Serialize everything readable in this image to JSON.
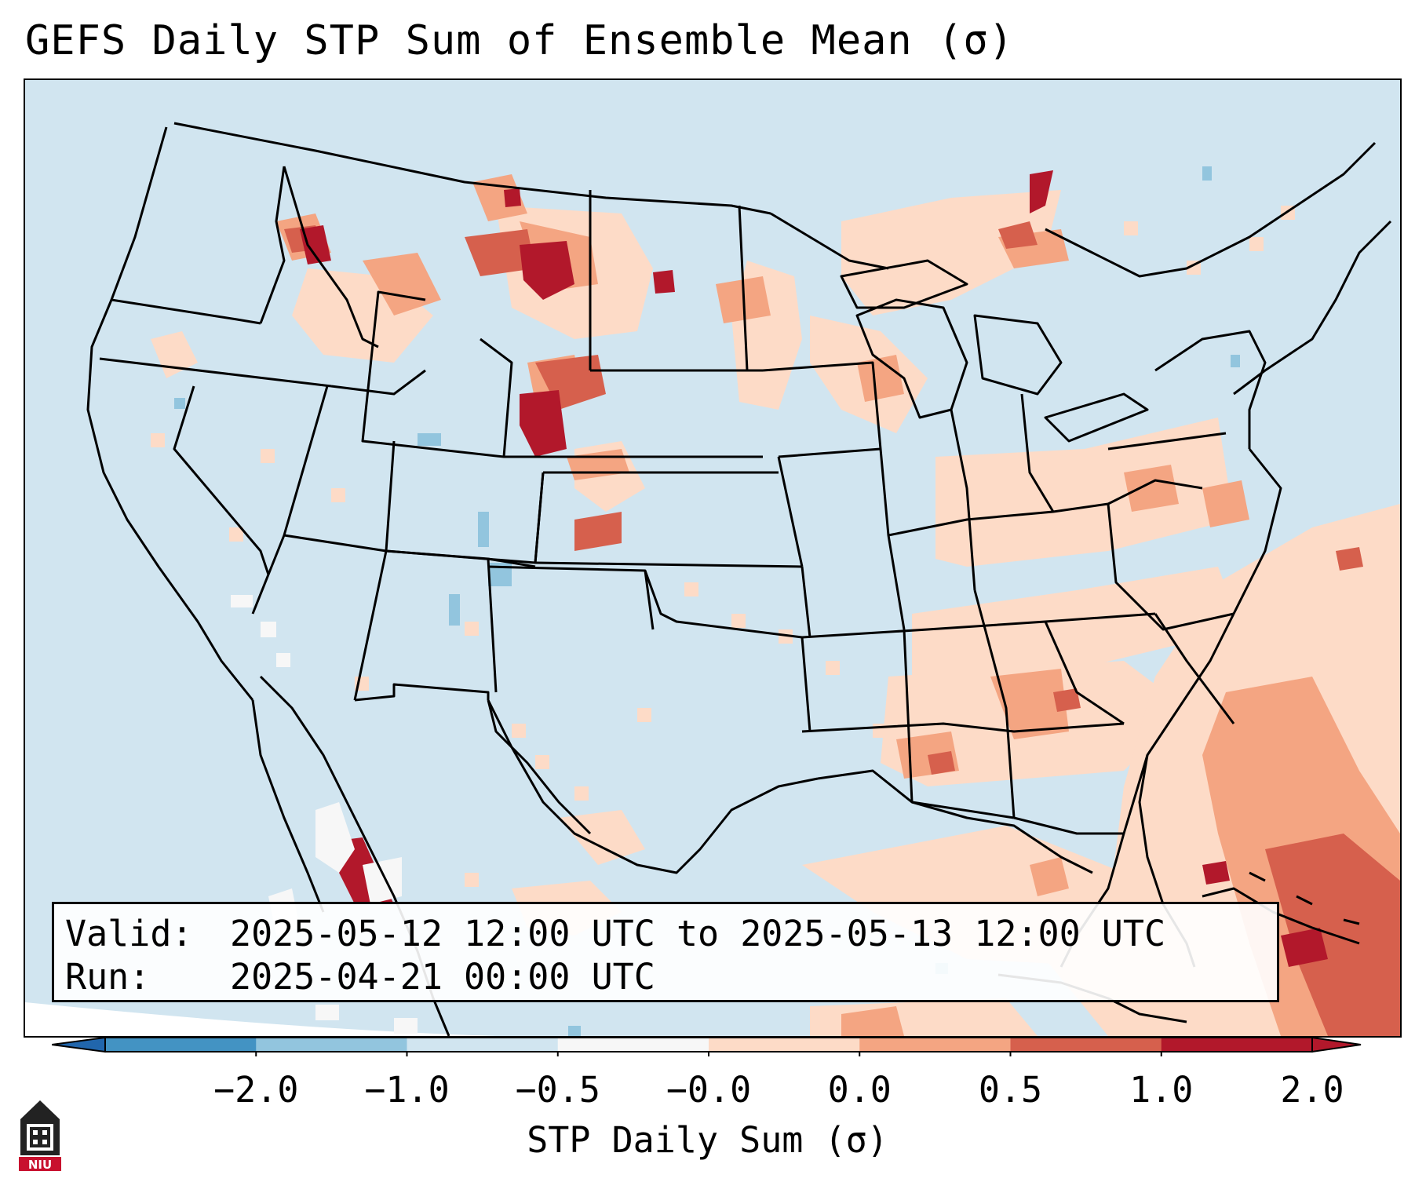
{
  "title": "GEFS Daily STP Sum of Ensemble Mean (σ)",
  "info": {
    "valid_label": "Valid:",
    "valid_value": "2025-05-12 12:00 UTC to 2025-05-13 12:00 UTC",
    "run_label": "Run:",
    "run_value": "2025-04-21 00:00 UTC"
  },
  "colorbar": {
    "label": "STP Daily Sum (σ)",
    "ticks": [
      "−2.0",
      "−1.0",
      "−0.5",
      "−0.0",
      "0.0",
      "0.5",
      "1.0",
      "2.0"
    ],
    "colors": [
      "#4393c3",
      "#92c5de",
      "#d1e5f0",
      "#f7f7f7",
      "#fddbc7",
      "#f4a582",
      "#d6604d",
      "#b2182b"
    ],
    "under_color": "#2166ac",
    "over_color": "#b2182b"
  },
  "logo_text": "NIU",
  "colors": {
    "background": "#d1e5f0",
    "light_positive": "#fddbc7",
    "mid_positive": "#f4a582",
    "strong_positive": "#d6604d",
    "extreme_positive": "#b2182b",
    "light_negative": "#92c5de",
    "neutral": "#f7f7f7",
    "logo_red": "#c8102e"
  }
}
